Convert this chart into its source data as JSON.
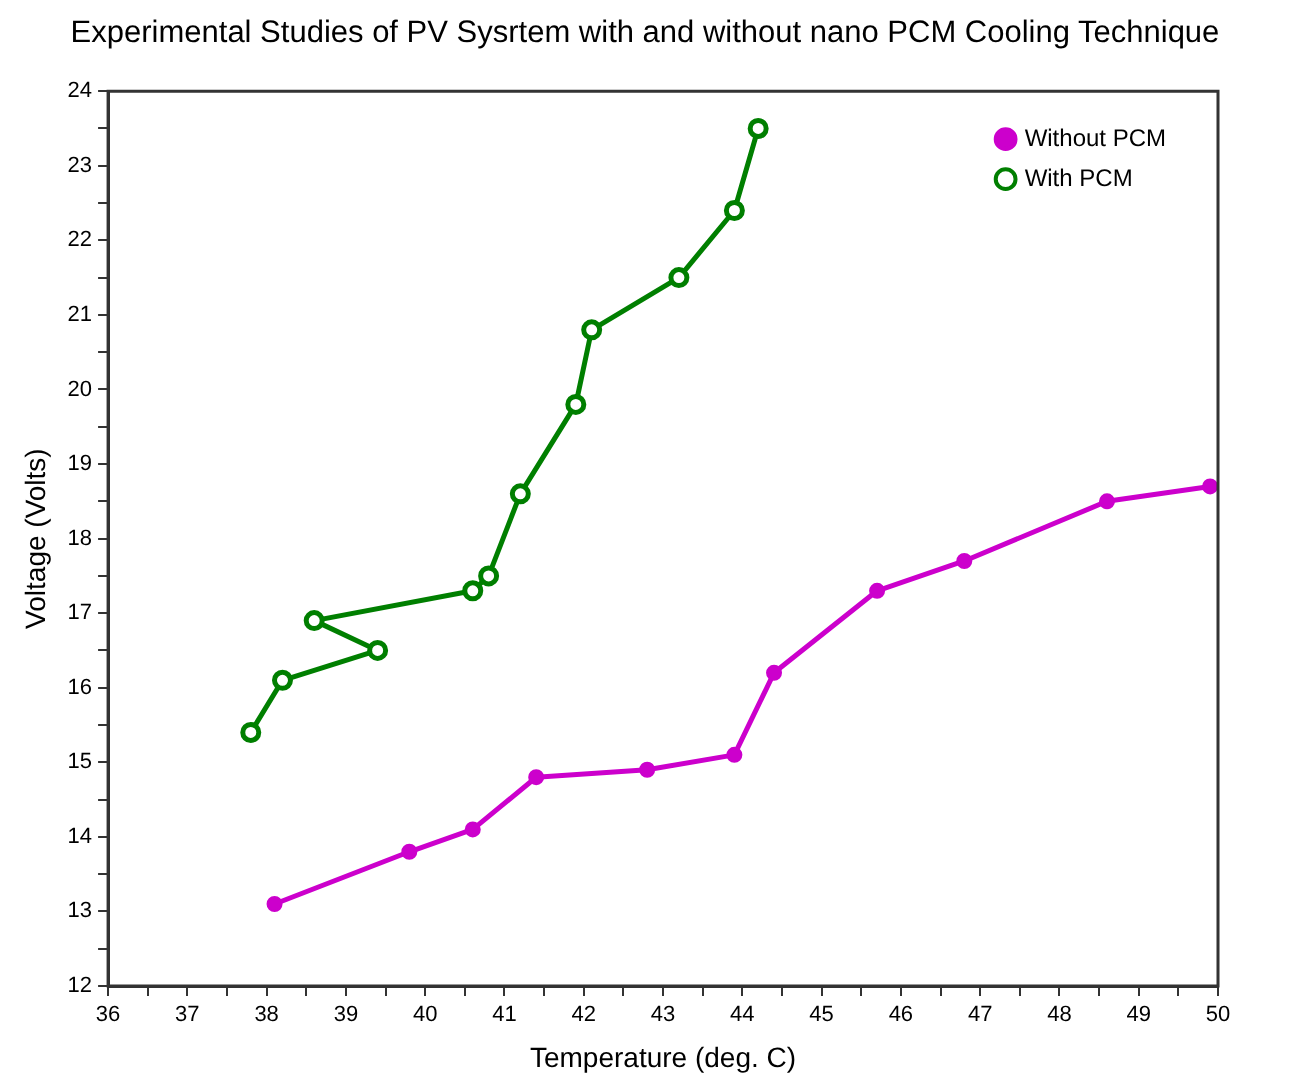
{
  "chart_data": {
    "type": "line",
    "title": "Experimental Studies of PV Sysrtem with and without nano PCM Cooling Technique",
    "xlabel": "Temperature (deg. C)",
    "ylabel": "Voltage (Volts)",
    "xlim": [
      36,
      50
    ],
    "ylim": [
      12,
      24
    ],
    "xticks": [
      36,
      {
        "value": 36.5,
        "label": null
      },
      37,
      {
        "value": 37.5,
        "label": null
      },
      38,
      {
        "value": 38.5,
        "label": null
      },
      39,
      {
        "value": 39.5,
        "label": null
      },
      40,
      {
        "value": 40.5,
        "label": null
      },
      41,
      {
        "value": 41.5,
        "label": null
      },
      42,
      {
        "value": 42.5,
        "label": null
      },
      43,
      {
        "value": 43.5,
        "label": null
      },
      44,
      {
        "value": 44.5,
        "label": null
      },
      45,
      {
        "value": 45.5,
        "label": null
      },
      46,
      {
        "value": 46.5,
        "label": null
      },
      47,
      {
        "value": 47.5,
        "label": null
      },
      48,
      {
        "value": 48.5,
        "label": null
      },
      49,
      {
        "value": 49.5,
        "label": null
      },
      50
    ],
    "yticks": [
      12,
      {
        "value": 12.5,
        "label": null
      },
      13,
      {
        "value": 13.5,
        "label": null
      },
      14,
      {
        "value": 14.5,
        "label": null
      },
      15,
      {
        "value": 15.5,
        "label": null
      },
      16,
      {
        "value": 16.5,
        "label": null
      },
      17,
      {
        "value": 17.5,
        "label": null
      },
      18,
      {
        "value": 18.5,
        "label": null
      },
      19,
      {
        "value": 19.5,
        "label": null
      },
      20,
      {
        "value": 20.5,
        "label": null
      },
      21,
      {
        "value": 21.5,
        "label": null
      },
      22,
      {
        "value": 22.5,
        "label": null
      },
      23,
      {
        "value": 23.5,
        "label": null
      },
      24
    ],
    "series": [
      {
        "name": "Without PCM",
        "color": "#cc00cc",
        "x": [
          38.1,
          39.8,
          40.6,
          41.4,
          42.8,
          43.9,
          44.4,
          45.7,
          46.8,
          48.6,
          49.9
        ],
        "values": [
          13.1,
          13.8,
          14.1,
          14.8,
          14.9,
          15.1,
          16.2,
          17.3,
          17.7,
          18.5,
          18.7
        ]
      },
      {
        "name": "With PCM",
        "color": "#007f00",
        "x": [
          37.8,
          38.2,
          39.4,
          38.6,
          40.6,
          40.8,
          41.2,
          41.9,
          42.1,
          43.2,
          43.9,
          44.2
        ],
        "values": [
          15.4,
          16.1,
          16.5,
          16.9,
          17.3,
          17.5,
          18.6,
          19.8,
          20.8,
          21.5,
          22.4,
          23.5
        ]
      }
    ],
    "marker": "circle",
    "line_style": "solid",
    "legend": "top right",
    "grid": false
  }
}
